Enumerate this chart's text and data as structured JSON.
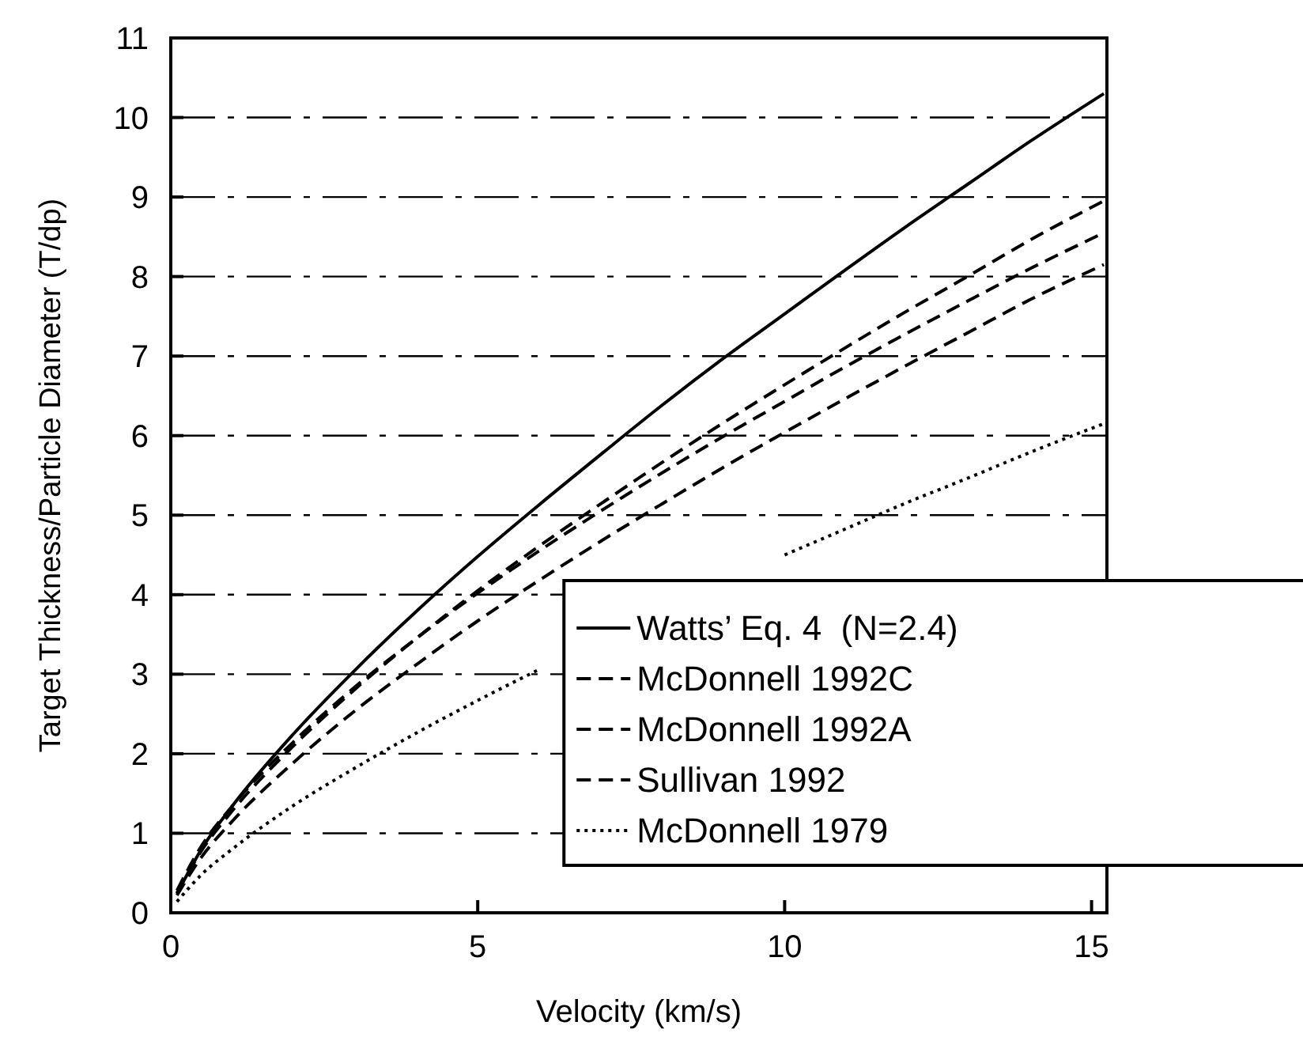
{
  "chart_data": {
    "type": "line",
    "xlabel": "Velocity (km/s)",
    "ylabel": "Target Thickness/Particle Diameter (T/dp)",
    "x": [
      0.1,
      0.5,
      1,
      2,
      3,
      4,
      5,
      6,
      7,
      8,
      9,
      10,
      11,
      12,
      13,
      14,
      15.2
    ],
    "xlim": [
      0,
      15.25
    ],
    "xticks": [
      0,
      5,
      10,
      15
    ],
    "ylim": [
      0,
      11
    ],
    "yticks": [
      0,
      1,
      2,
      3,
      4,
      5,
      6,
      7,
      8,
      9,
      10,
      11
    ],
    "grid": "y",
    "legend": "bottom right",
    "series": [
      {
        "name": "Watts’ Eq. 4  (N=2.4)",
        "color": "#000000",
        "line_style": "solid",
        "values": [
          0.24,
          0.8,
          1.34,
          2.25,
          3.05,
          3.79,
          4.48,
          5.13,
          5.76,
          6.38,
          6.97,
          7.53,
          8.09,
          8.64,
          9.17,
          9.7,
          10.3
        ]
      },
      {
        "name": "McDonnell 1992C",
        "color": "#000000",
        "line_style": "dashed",
        "values": [
          0.25,
          0.78,
          1.28,
          2.1,
          2.81,
          3.45,
          4.05,
          4.61,
          5.14,
          5.66,
          6.16,
          6.64,
          7.11,
          7.57,
          8.01,
          8.46,
          8.95
        ]
      },
      {
        "name": "McDonnell 1992A",
        "color": "#000000",
        "line_style": "dashed",
        "values": [
          0.28,
          0.84,
          1.34,
          2.15,
          2.84,
          3.45,
          4.02,
          4.55,
          5.05,
          5.53,
          5.99,
          6.43,
          6.87,
          7.29,
          7.7,
          8.1,
          8.55
        ]
      },
      {
        "name": "Sullivan 1992",
        "color": "#000000",
        "line_style": "dashed",
        "values": [
          0.22,
          0.7,
          1.15,
          1.89,
          2.54,
          3.12,
          3.67,
          4.18,
          4.67,
          5.14,
          5.6,
          6.04,
          6.47,
          6.89,
          7.3,
          7.71,
          8.15
        ]
      },
      {
        "name": "McDonnell 1979",
        "color": "#000000",
        "line_style": "dotted",
        "values": [
          0.14,
          0.48,
          0.8,
          1.35,
          1.82,
          2.26,
          2.67,
          3.06,
          null,
          null,
          null,
          4.5,
          4.83,
          5.16,
          5.47,
          5.79,
          6.15
        ]
      }
    ]
  }
}
